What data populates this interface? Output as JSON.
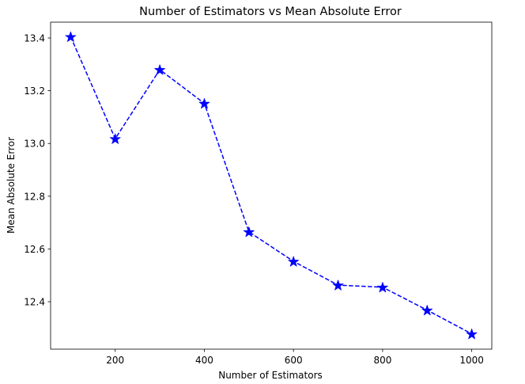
{
  "chart_data": {
    "type": "line",
    "title": "Number of Estimators vs Mean Absolute Error",
    "xlabel": "Number of Estimators",
    "ylabel": "Mean Absolute Error",
    "x": [
      100,
      200,
      300,
      400,
      500,
      600,
      700,
      800,
      900,
      1000
    ],
    "series": [
      {
        "values": [
          13.405,
          13.018,
          13.28,
          13.152,
          12.665,
          12.553,
          12.463,
          12.455,
          12.368,
          12.278
        ],
        "color": "#0000ff",
        "line_style": "dashed",
        "marker": "star"
      }
    ],
    "xlim": [
      55,
      1045
    ],
    "ylim": [
      12.22,
      13.46
    ],
    "x_ticks": [
      200,
      400,
      600,
      800,
      1000
    ],
    "x_tick_labels": [
      "200",
      "400",
      "600",
      "800",
      "1000"
    ],
    "y_ticks": [
      12.4,
      12.6,
      12.8,
      13.0,
      13.2,
      13.4
    ],
    "y_tick_labels": [
      "12.4",
      "12.6",
      "12.8",
      "13.0",
      "13.2",
      "13.4"
    ],
    "grid": false,
    "legend": "none"
  }
}
